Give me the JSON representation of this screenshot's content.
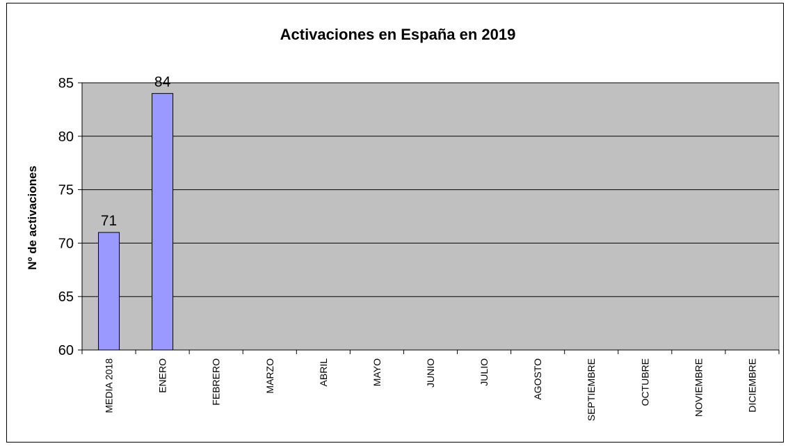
{
  "chart_data": {
    "type": "bar",
    "title": "Activaciones en España en 2019",
    "xlabel": "",
    "ylabel": "Nº de activaciones",
    "categories": [
      "MEDIA 2018",
      "ENERO",
      "FEBRERO",
      "MARZO",
      "ABRIL",
      "MAYO",
      "JUNIO",
      "JULIO",
      "AGOSTO",
      "SEPTIEMBRE",
      "OCTUBRE",
      "NOVIEMBRE",
      "DICIEMBRE"
    ],
    "values": [
      71,
      84,
      null,
      null,
      null,
      null,
      null,
      null,
      null,
      null,
      null,
      null,
      null
    ],
    "data_labels": [
      "71",
      "84",
      "",
      "",
      "",
      "",
      "",
      "",
      "",
      "",
      "",
      "",
      ""
    ],
    "ylim": [
      60,
      85
    ],
    "yticks": [
      60,
      65,
      70,
      75,
      80,
      85
    ],
    "grid": true,
    "legend": "none",
    "colors": {
      "plot_background": "#c0c0c0",
      "bar_fill": "#9999ff",
      "bar_stroke": "#000000",
      "gridline": "#000000"
    }
  }
}
